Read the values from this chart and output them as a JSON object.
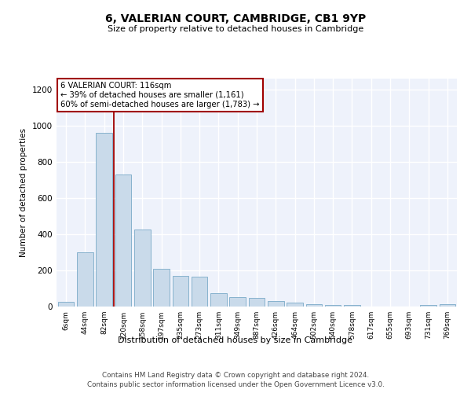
{
  "title": "6, VALERIAN COURT, CAMBRIDGE, CB1 9YP",
  "subtitle": "Size of property relative to detached houses in Cambridge",
  "xlabel": "Distribution of detached houses by size in Cambridge",
  "ylabel": "Number of detached properties",
  "bar_color": "#c9daea",
  "bar_edge_color": "#7aaac8",
  "categories": [
    "6sqm",
    "44sqm",
    "82sqm",
    "120sqm",
    "158sqm",
    "197sqm",
    "235sqm",
    "273sqm",
    "311sqm",
    "349sqm",
    "387sqm",
    "426sqm",
    "464sqm",
    "502sqm",
    "540sqm",
    "578sqm",
    "617sqm",
    "655sqm",
    "693sqm",
    "731sqm",
    "769sqm"
  ],
  "values": [
    25,
    300,
    960,
    730,
    425,
    210,
    170,
    165,
    75,
    50,
    48,
    30,
    20,
    12,
    10,
    10,
    0,
    0,
    0,
    10,
    15
  ],
  "ylim": [
    0,
    1260
  ],
  "yticks": [
    0,
    200,
    400,
    600,
    800,
    1000,
    1200
  ],
  "annotation_text": "6 VALERIAN COURT: 116sqm\n← 39% of detached houses are smaller (1,161)\n60% of semi-detached houses are larger (1,783) →",
  "vline_color": "#a00000",
  "annotation_box_color": "#a00000",
  "footer_line1": "Contains HM Land Registry data © Crown copyright and database right 2024.",
  "footer_line2": "Contains public sector information licensed under the Open Government Licence v3.0.",
  "background_color": "#eef2fb"
}
